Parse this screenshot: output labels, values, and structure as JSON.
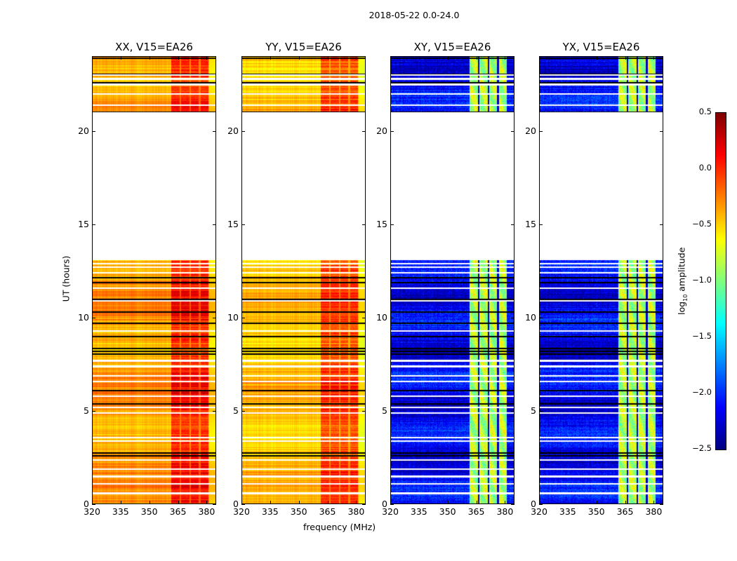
{
  "suptitle": "2018-05-22 0.0-24.0",
  "xlabel": "frequency (MHz)",
  "ylabel": "UT (hours)",
  "colorbar": {
    "label_prefix": "log",
    "label_sub": "10",
    "label_suffix": " amplitude",
    "range": [
      -2.5,
      0.5
    ],
    "ticks": [
      "0.5",
      "0.0",
      "−0.5",
      "−1.0",
      "−1.5",
      "−2.0",
      "−2.5"
    ],
    "tick_values": [
      0.5,
      0,
      -0.5,
      -1,
      -1.5,
      -2,
      -2.5
    ],
    "colormap": "jet"
  },
  "chart_data": [
    {
      "type": "heatmap",
      "title": "XX, V15=EA26",
      "kind": "parallel",
      "base_level": -0.35,
      "band_level": 0.05,
      "xlim": [
        320,
        385
      ],
      "ylim": [
        0,
        24
      ]
    },
    {
      "type": "heatmap",
      "title": "YY, V15=EA26",
      "kind": "parallel",
      "base_level": -0.45,
      "band_level": -0.05,
      "xlim": [
        320,
        385
      ],
      "ylim": [
        0,
        24
      ]
    },
    {
      "type": "heatmap",
      "title": "XY, V15=EA26",
      "kind": "cross",
      "base_level": -2.15,
      "band_level": -0.85,
      "xlim": [
        320,
        385
      ],
      "ylim": [
        0,
        24
      ]
    },
    {
      "type": "heatmap",
      "title": "YX, V15=EA26",
      "kind": "cross",
      "base_level": -2.15,
      "band_level": -0.85,
      "xlim": [
        320,
        385
      ],
      "ylim": [
        0,
        24
      ]
    }
  ],
  "shared": {
    "xticks": [
      320,
      335,
      350,
      365,
      380
    ],
    "xtick_labels": [
      "320",
      "335",
      "350",
      "365",
      "380"
    ],
    "yticks": [
      0,
      5,
      10,
      15,
      20
    ],
    "ytick_labels": [
      "0",
      "5",
      "10",
      "15",
      "20"
    ],
    "no_data_hours": [
      13.1,
      21.0
    ],
    "band_segments_mhz": [
      [
        361.2,
        365.6
      ],
      [
        366.3,
        370.7
      ],
      [
        371.5,
        375.5
      ],
      [
        376.6,
        380.7
      ]
    ],
    "white_flag_hours": [
      0.6,
      1.1,
      1.5,
      1.9,
      2.4,
      3.4,
      3.6,
      4.9,
      5.2,
      5.8,
      6.6,
      6.9,
      7.4,
      7.7,
      9.3,
      10.9,
      11.6,
      12.4,
      12.7,
      12.9,
      21.4,
      22.0,
      22.5,
      22.8,
      23.0
    ],
    "black_flag_hours": [
      2.6,
      2.75,
      5.4,
      6.1,
      8.05,
      8.2,
      8.35,
      9.0,
      9.7,
      10.3,
      11.0,
      11.9,
      12.15,
      21.0,
      22.6,
      23.05,
      23.9
    ]
  }
}
